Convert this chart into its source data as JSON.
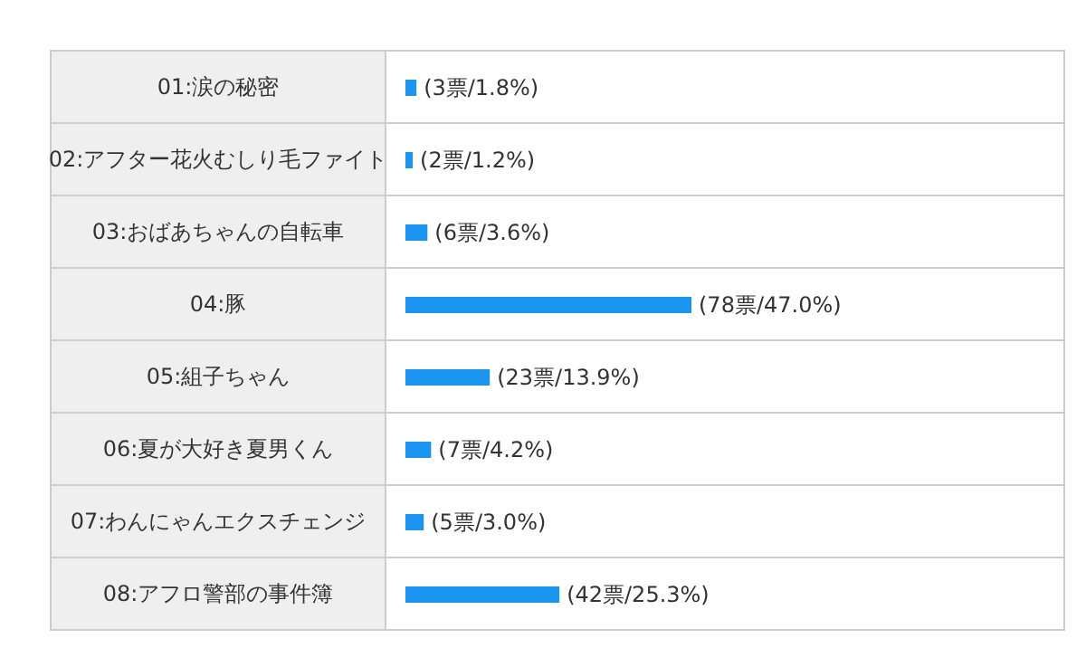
{
  "chart_data": {
    "type": "bar",
    "orientation": "horizontal",
    "categories": [
      "01:涙の秘密",
      "02:アフター花火むしり毛ファイト",
      "03:おばあちゃんの自転車",
      "04:豚",
      "05:組子ちゃん",
      "06:夏が大好き夏男くん",
      "07:わんにゃんエクスチェンジ",
      "08:アフロ警部の事件簿"
    ],
    "values": [
      3,
      2,
      6,
      78,
      23,
      7,
      5,
      42
    ],
    "color": "#1a96f0",
    "value_labels": [
      "(3票/1.8%)",
      "(2票/1.2%)",
      "(6票/3.6%)",
      "(78票/47.0%)",
      "(23票/13.9%)",
      "(7票/4.2%)",
      "(5票/3.0%)",
      "(42票/25.3%)"
    ]
  }
}
